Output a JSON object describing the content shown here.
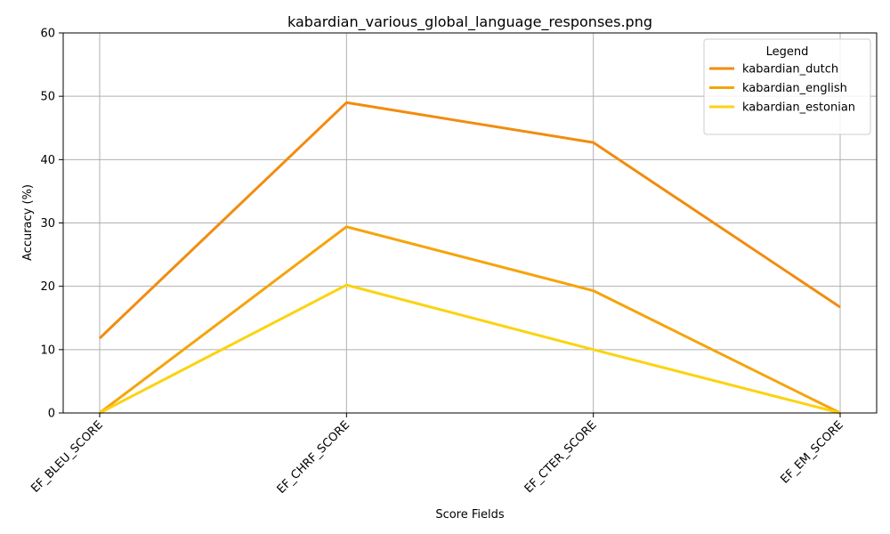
{
  "chart_data": {
    "type": "line",
    "title": "kabardian_various_global_language_responses.png",
    "xlabel": "Score Fields",
    "ylabel": "Accuracy (%)",
    "categories": [
      "EF_BLEU_SCORE",
      "EF_CHRF_SCORE",
      "EF_CTER_SCORE",
      "EF_EM_SCORE"
    ],
    "ylim": [
      0,
      60
    ],
    "yticks": [
      0,
      10,
      20,
      30,
      40,
      50,
      60
    ],
    "grid": true,
    "legend": {
      "title": "Legend",
      "placement": "top-right"
    },
    "series": [
      {
        "name": "kabardian_dutch",
        "color": "#f28c0f",
        "values": [
          11.8,
          49.0,
          42.7,
          16.7
        ]
      },
      {
        "name": "kabardian_english",
        "color": "#f5a40c",
        "values": [
          0.0,
          29.4,
          19.3,
          0.0
        ]
      },
      {
        "name": "kabardian_estonian",
        "color": "#fbd312",
        "values": [
          0.0,
          20.2,
          10.0,
          0.0
        ]
      }
    ]
  }
}
